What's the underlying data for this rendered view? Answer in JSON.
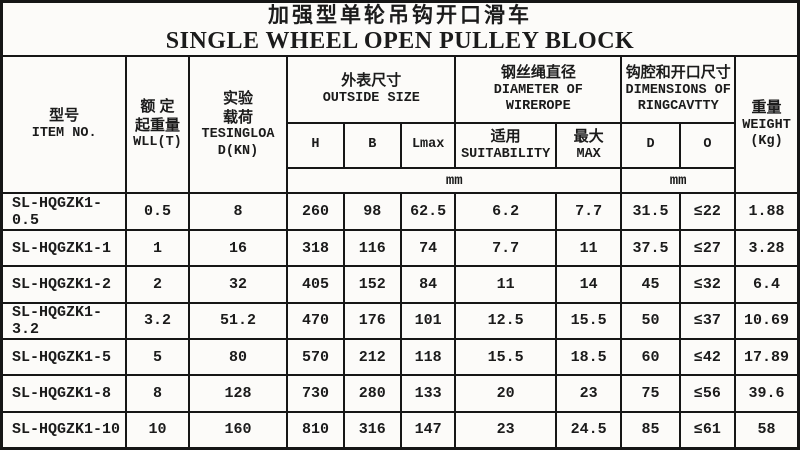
{
  "title": {
    "zh": "加强型单轮吊钩开口滑车",
    "en": "SINGLE WHEEL OPEN PULLEY BLOCK"
  },
  "header": {
    "item_no": {
      "zh": "型号",
      "en": "ITEM NO."
    },
    "wll": {
      "zh_line1": "额 定",
      "zh_line2": "起重量",
      "en": "WLL(T)"
    },
    "test_load": {
      "zh_line1": "实验",
      "zh_line2": "载荷",
      "en_line1": "TESINGLOA",
      "en_line2": "D(KN)"
    },
    "outside_size": {
      "zh": "外表尺寸",
      "en": "OUTSIDE SIZE"
    },
    "wirerope": {
      "zh": "钢丝绳直径",
      "en_line1": "DIAMETER OF",
      "en_line2": "WIREROPE"
    },
    "ringcavity": {
      "zh": "钩腔和开口尺寸",
      "en_line1": "DIMENSIONS OF",
      "en_line2": "RINGCAVTTY"
    },
    "weight": {
      "zh": "重量",
      "en_line1": "WEIGHT",
      "en_line2": "(Kg)"
    },
    "sub": {
      "h": "H",
      "b": "B",
      "lmax": "Lmax",
      "suitability_zh": "适用",
      "suitability_en": "SUITABILITY",
      "max_zh": "最大",
      "max_en": "MAX",
      "d": "D",
      "o": "O"
    },
    "unit_mm_left": "mm",
    "unit_mm_right": "mm"
  },
  "rows": [
    {
      "item_no": "SL-HQGZK1-0.5",
      "wll_t": "0.5",
      "test_load_kn": "8",
      "h": "260",
      "b": "98",
      "lmax": "62.5",
      "rope_suitability": "6.2",
      "rope_max": "7.7",
      "d": "31.5",
      "o": "≤22",
      "weight_kg": "1.88"
    },
    {
      "item_no": "SL-HQGZK1-1",
      "wll_t": "1",
      "test_load_kn": "16",
      "h": "318",
      "b": "116",
      "lmax": "74",
      "rope_suitability": "7.7",
      "rope_max": "11",
      "d": "37.5",
      "o": "≤27",
      "weight_kg": "3.28"
    },
    {
      "item_no": "SL-HQGZK1-2",
      "wll_t": "2",
      "test_load_kn": "32",
      "h": "405",
      "b": "152",
      "lmax": "84",
      "rope_suitability": "11",
      "rope_max": "14",
      "d": "45",
      "o": "≤32",
      "weight_kg": "6.4"
    },
    {
      "item_no": "SL-HQGZK1-3.2",
      "wll_t": "3.2",
      "test_load_kn": "51.2",
      "h": "470",
      "b": "176",
      "lmax": "101",
      "rope_suitability": "12.5",
      "rope_max": "15.5",
      "d": "50",
      "o": "≤37",
      "weight_kg": "10.69"
    },
    {
      "item_no": "SL-HQGZK1-5",
      "wll_t": "5",
      "test_load_kn": "80",
      "h": "570",
      "b": "212",
      "lmax": "118",
      "rope_suitability": "15.5",
      "rope_max": "18.5",
      "d": "60",
      "o": "≤42",
      "weight_kg": "17.89"
    },
    {
      "item_no": "SL-HQGZK1-8",
      "wll_t": "8",
      "test_load_kn": "128",
      "h": "730",
      "b": "280",
      "lmax": "133",
      "rope_suitability": "20",
      "rope_max": "23",
      "d": "75",
      "o": "≤56",
      "weight_kg": "39.6"
    },
    {
      "item_no": "SL-HQGZK1-10",
      "wll_t": "10",
      "test_load_kn": "160",
      "h": "810",
      "b": "316",
      "lmax": "147",
      "rope_suitability": "23",
      "rope_max": "24.5",
      "d": "85",
      "o": "≤61",
      "weight_kg": "58"
    }
  ]
}
